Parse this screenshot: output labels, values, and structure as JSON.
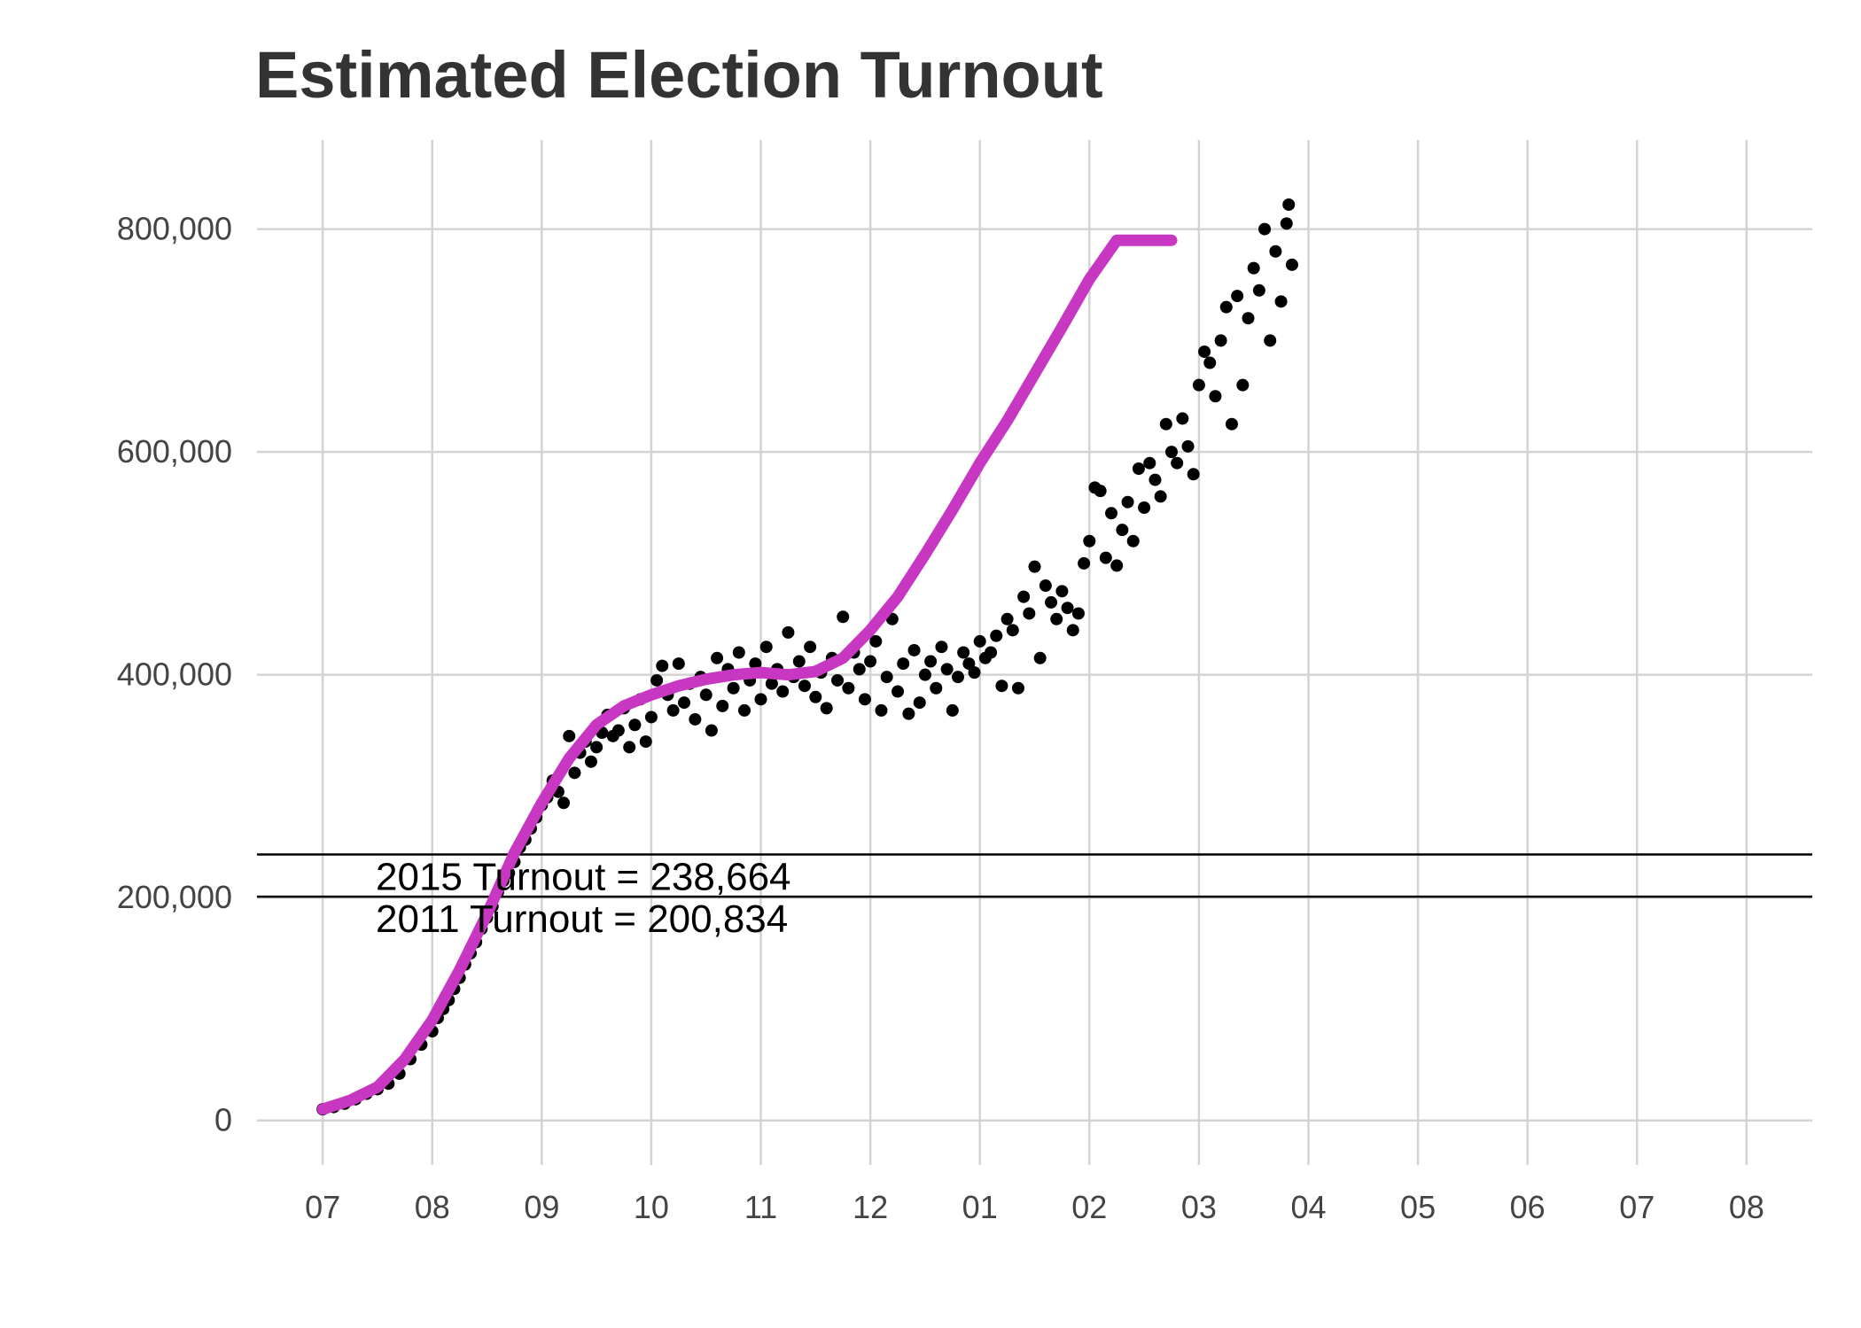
{
  "chart_data": {
    "type": "scatter",
    "title": "Estimated Election Turnout",
    "xlabel": "",
    "ylabel": "",
    "x_ticks": [
      "07",
      "08",
      "09",
      "10",
      "11",
      "12",
      "01",
      "02",
      "03",
      "04",
      "05",
      "06",
      "07",
      "08"
    ],
    "x_range_months": [
      -0.6,
      13.6
    ],
    "y_ticks": [
      0,
      200000,
      400000,
      600000,
      800000
    ],
    "y_tick_labels": [
      "0",
      "200,000",
      "400,000",
      "600,000",
      "800,000"
    ],
    "ylim": [
      -40000,
      880000
    ],
    "grid": true,
    "legend": "none",
    "reference_lines": [
      {
        "label": "2015 Turnout = 238,664",
        "value": 238664
      },
      {
        "label": "2011 Turnout = 200,834",
        "value": 200834
      }
    ],
    "trend": {
      "name": "",
      "color": "#c837c1",
      "x_months": [
        0,
        0.25,
        0.5,
        0.75,
        1.0,
        1.25,
        1.5,
        1.75,
        2.0,
        2.25,
        2.5,
        2.75,
        3.0,
        3.25,
        3.5,
        3.75,
        4.0,
        4.25,
        4.5,
        4.75,
        5.0,
        5.25,
        5.5,
        5.75,
        6.0,
        6.25,
        6.5,
        6.75,
        7.0,
        7.25,
        7.5,
        7.75
      ],
      "y": [
        10000,
        18000,
        30000,
        55000,
        90000,
        135000,
        185000,
        240000,
        285000,
        325000,
        355000,
        372000,
        382000,
        390000,
        396000,
        400000,
        402000,
        400000,
        403000,
        415000,
        440000,
        470000,
        508000,
        548000,
        590000,
        628000,
        670000,
        712000,
        755000,
        790000,
        790000,
        790000
      ]
    },
    "series": [
      {
        "name": "",
        "color": "#000000",
        "points": [
          [
            0.0,
            10000
          ],
          [
            0.1,
            12000
          ],
          [
            0.2,
            15000
          ],
          [
            0.3,
            19000
          ],
          [
            0.4,
            24000
          ],
          [
            0.5,
            28000
          ],
          [
            0.6,
            33000
          ],
          [
            0.7,
            42000
          ],
          [
            0.8,
            55000
          ],
          [
            0.9,
            68000
          ],
          [
            1.0,
            80000
          ],
          [
            1.05,
            92000
          ],
          [
            1.1,
            100000
          ],
          [
            1.15,
            108000
          ],
          [
            1.2,
            118000
          ],
          [
            1.25,
            128000
          ],
          [
            1.3,
            140000
          ],
          [
            1.35,
            150000
          ],
          [
            1.4,
            160000
          ],
          [
            1.45,
            172000
          ],
          [
            1.5,
            182000
          ],
          [
            1.55,
            192000
          ],
          [
            1.6,
            205000
          ],
          [
            1.65,
            215000
          ],
          [
            1.7,
            222000
          ],
          [
            1.75,
            232000
          ],
          [
            1.8,
            245000
          ],
          [
            1.85,
            252000
          ],
          [
            1.9,
            262000
          ],
          [
            1.95,
            272000
          ],
          [
            2.0,
            283000
          ],
          [
            2.05,
            290000
          ],
          [
            2.1,
            305000
          ],
          [
            2.15,
            295000
          ],
          [
            2.2,
            285000
          ],
          [
            2.25,
            345000
          ],
          [
            2.3,
            312000
          ],
          [
            2.35,
            330000
          ],
          [
            2.4,
            340000
          ],
          [
            2.45,
            322000
          ],
          [
            2.5,
            335000
          ],
          [
            2.55,
            348000
          ],
          [
            2.6,
            364000
          ],
          [
            2.65,
            345000
          ],
          [
            2.7,
            350000
          ],
          [
            2.75,
            370000
          ],
          [
            2.8,
            335000
          ],
          [
            2.85,
            355000
          ],
          [
            2.9,
            378000
          ],
          [
            2.95,
            340000
          ],
          [
            3.0,
            362000
          ],
          [
            3.05,
            395000
          ],
          [
            3.1,
            408000
          ],
          [
            3.15,
            382000
          ],
          [
            3.2,
            368000
          ],
          [
            3.25,
            410000
          ],
          [
            3.3,
            375000
          ],
          [
            3.35,
            392000
          ],
          [
            3.4,
            360000
          ],
          [
            3.45,
            398000
          ],
          [
            3.5,
            382000
          ],
          [
            3.55,
            350000
          ],
          [
            3.6,
            415000
          ],
          [
            3.65,
            372000
          ],
          [
            3.7,
            405000
          ],
          [
            3.75,
            388000
          ],
          [
            3.8,
            420000
          ],
          [
            3.85,
            368000
          ],
          [
            3.9,
            395000
          ],
          [
            3.95,
            410000
          ],
          [
            4.0,
            378000
          ],
          [
            4.05,
            425000
          ],
          [
            4.1,
            392000
          ],
          [
            4.15,
            405000
          ],
          [
            4.2,
            385000
          ],
          [
            4.25,
            438000
          ],
          [
            4.3,
            398000
          ],
          [
            4.35,
            412000
          ],
          [
            4.4,
            390000
          ],
          [
            4.45,
            425000
          ],
          [
            4.5,
            380000
          ],
          [
            4.55,
            402000
          ],
          [
            4.6,
            370000
          ],
          [
            4.65,
            415000
          ],
          [
            4.7,
            395000
          ],
          [
            4.75,
            452000
          ],
          [
            4.8,
            388000
          ],
          [
            4.85,
            420000
          ],
          [
            4.9,
            405000
          ],
          [
            4.95,
            378000
          ],
          [
            5.0,
            412000
          ],
          [
            5.05,
            430000
          ],
          [
            5.1,
            368000
          ],
          [
            5.15,
            398000
          ],
          [
            5.2,
            450000
          ],
          [
            5.25,
            385000
          ],
          [
            5.3,
            410000
          ],
          [
            5.35,
            365000
          ],
          [
            5.4,
            422000
          ],
          [
            5.45,
            375000
          ],
          [
            5.5,
            400000
          ],
          [
            5.55,
            412000
          ],
          [
            5.6,
            388000
          ],
          [
            5.65,
            425000
          ],
          [
            5.7,
            405000
          ],
          [
            5.75,
            368000
          ],
          [
            5.8,
            398000
          ],
          [
            5.85,
            420000
          ],
          [
            5.9,
            410000
          ],
          [
            5.95,
            402000
          ],
          [
            6.0,
            430000
          ],
          [
            6.05,
            415000
          ],
          [
            6.1,
            420000
          ],
          [
            6.15,
            435000
          ],
          [
            6.2,
            390000
          ],
          [
            6.25,
            450000
          ],
          [
            6.3,
            440000
          ],
          [
            6.35,
            388000
          ],
          [
            6.4,
            470000
          ],
          [
            6.45,
            455000
          ],
          [
            6.5,
            497000
          ],
          [
            6.55,
            415000
          ],
          [
            6.6,
            480000
          ],
          [
            6.65,
            465000
          ],
          [
            6.7,
            450000
          ],
          [
            6.75,
            475000
          ],
          [
            6.8,
            460000
          ],
          [
            6.85,
            440000
          ],
          [
            6.9,
            455000
          ],
          [
            6.95,
            500000
          ],
          [
            7.0,
            520000
          ],
          [
            7.05,
            568000
          ],
          [
            7.1,
            565000
          ],
          [
            7.15,
            505000
          ],
          [
            7.2,
            545000
          ],
          [
            7.25,
            498000
          ],
          [
            7.3,
            530000
          ],
          [
            7.35,
            555000
          ],
          [
            7.4,
            520000
          ],
          [
            7.45,
            585000
          ],
          [
            7.5,
            550000
          ],
          [
            7.55,
            590000
          ],
          [
            7.6,
            575000
          ],
          [
            7.65,
            560000
          ],
          [
            7.7,
            625000
          ],
          [
            7.75,
            600000
          ],
          [
            7.8,
            590000
          ],
          [
            7.85,
            630000
          ],
          [
            7.9,
            605000
          ],
          [
            7.95,
            580000
          ],
          [
            8.0,
            660000
          ],
          [
            8.05,
            690000
          ],
          [
            8.1,
            680000
          ],
          [
            8.15,
            650000
          ],
          [
            8.2,
            700000
          ],
          [
            8.25,
            730000
          ],
          [
            8.3,
            625000
          ],
          [
            8.35,
            740000
          ],
          [
            8.4,
            660000
          ],
          [
            8.45,
            720000
          ],
          [
            8.5,
            765000
          ],
          [
            8.55,
            745000
          ],
          [
            8.6,
            800000
          ],
          [
            8.65,
            700000
          ],
          [
            8.7,
            780000
          ],
          [
            8.75,
            735000
          ],
          [
            8.8,
            805000
          ],
          [
            8.82,
            822000
          ],
          [
            8.85,
            768000
          ]
        ]
      }
    ]
  }
}
